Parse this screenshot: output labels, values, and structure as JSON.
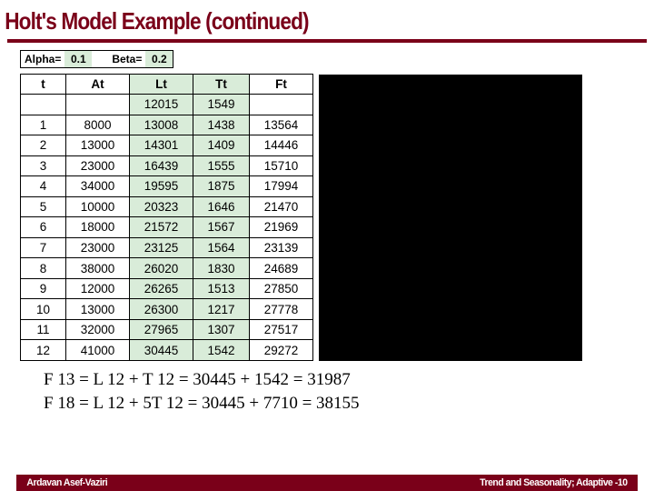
{
  "title": "Holt's Model Example (continued)",
  "params": {
    "alpha_label": "Alpha=",
    "alpha_value": "0.1",
    "beta_label": "Beta=",
    "beta_value": "0.2"
  },
  "table": {
    "headers": {
      "t": "t",
      "at": "At",
      "lt": "Lt",
      "tt": "Tt",
      "ft": "Ft"
    },
    "initRow": {
      "lt": "12015",
      "tt": "1549"
    },
    "rows": [
      {
        "t": "1",
        "at": "8000",
        "lt": "13008",
        "tt": "1438",
        "ft": "13564"
      },
      {
        "t": "2",
        "at": "13000",
        "lt": "14301",
        "tt": "1409",
        "ft": "14446"
      },
      {
        "t": "3",
        "at": "23000",
        "lt": "16439",
        "tt": "1555",
        "ft": "15710"
      },
      {
        "t": "4",
        "at": "34000",
        "lt": "19595",
        "tt": "1875",
        "ft": "17994"
      },
      {
        "t": "5",
        "at": "10000",
        "lt": "20323",
        "tt": "1646",
        "ft": "21470"
      },
      {
        "t": "6",
        "at": "18000",
        "lt": "21572",
        "tt": "1567",
        "ft": "21969"
      },
      {
        "t": "7",
        "at": "23000",
        "lt": "23125",
        "tt": "1564",
        "ft": "23139"
      },
      {
        "t": "8",
        "at": "38000",
        "lt": "26020",
        "tt": "1830",
        "ft": "24689"
      },
      {
        "t": "9",
        "at": "12000",
        "lt": "26265",
        "tt": "1513",
        "ft": "27850"
      },
      {
        "t": "10",
        "at": "13000",
        "lt": "26300",
        "tt": "1217",
        "ft": "27778"
      },
      {
        "t": "11",
        "at": "32000",
        "lt": "27965",
        "tt": "1307",
        "ft": "27517"
      },
      {
        "t": "12",
        "at": "41000",
        "lt": "30445",
        "tt": "1542",
        "ft": "29272"
      }
    ]
  },
  "formulas": {
    "f13": "F 13 = L 12 + T 12 = 30445 + 1542 = 31987",
    "f18": "F 18 = L 12 + 5T 12 = 30445 + 7710 = 38155"
  },
  "footer": {
    "left": "Ardavan Asef-Vaziri",
    "right": "Trend and Seasonality; Adaptive -10"
  },
  "colors": {
    "brand": "#7a0019",
    "highlight": "#d9ecd9",
    "black": "#000000",
    "white": "#ffffff"
  }
}
